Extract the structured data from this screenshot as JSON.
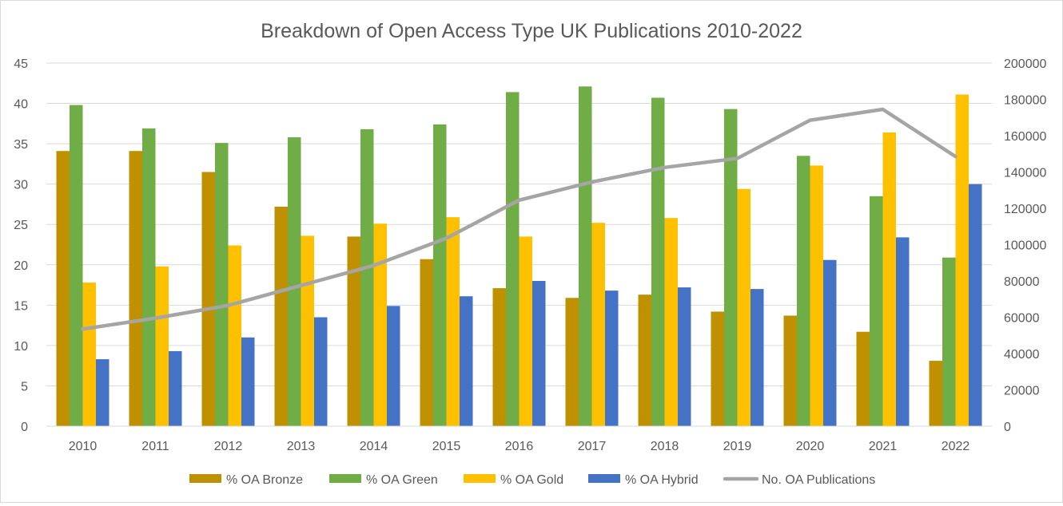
{
  "chart_data": {
    "type": "bar",
    "title": "Breakdown of Open Access Type UK Publications 2010-2022",
    "categories": [
      "2010",
      "2011",
      "2012",
      "2013",
      "2014",
      "2015",
      "2016",
      "2017",
      "2018",
      "2019",
      "2020",
      "2021",
      "2022"
    ],
    "series": [
      {
        "name": "% OA Bronze",
        "type": "bar",
        "axis": "left",
        "color": "#bf9000",
        "values": [
          34.1,
          34.1,
          31.5,
          27.2,
          23.5,
          20.7,
          17.1,
          15.9,
          16.3,
          14.2,
          13.7,
          11.7,
          8.1
        ]
      },
      {
        "name": "% OA Green",
        "type": "bar",
        "axis": "left",
        "color": "#70ad47",
        "values": [
          39.8,
          36.9,
          35.1,
          35.8,
          36.8,
          37.4,
          41.4,
          42.1,
          40.7,
          39.3,
          33.5,
          28.5,
          20.9
        ]
      },
      {
        "name": "% OA Gold",
        "type": "bar",
        "axis": "left",
        "color": "#ffc000",
        "values": [
          17.8,
          19.8,
          22.4,
          23.6,
          25.1,
          25.9,
          23.5,
          25.2,
          25.8,
          29.4,
          32.3,
          36.4,
          41.1
        ]
      },
      {
        "name": "% OA Hybrid",
        "type": "bar",
        "axis": "left",
        "color": "#4472c4",
        "values": [
          8.3,
          9.3,
          11.0,
          13.5,
          14.9,
          16.1,
          18.0,
          16.8,
          17.2,
          17.0,
          20.6,
          23.4,
          30.0
        ]
      },
      {
        "name": "No. OA Publications",
        "type": "line",
        "axis": "right",
        "color": "#a5a5a5",
        "values": [
          53500,
          59500,
          66500,
          77500,
          88500,
          103500,
          124500,
          134500,
          142500,
          147500,
          168500,
          174500,
          148500
        ]
      }
    ],
    "ylim_left": [
      0,
      45
    ],
    "yticks_left": [
      "0",
      "5",
      "10",
      "15",
      "20",
      "25",
      "30",
      "35",
      "40",
      "45"
    ],
    "ylim_right": [
      0,
      200000
    ],
    "yticks_right": [
      "0",
      "20000",
      "40000",
      "60000",
      "80000",
      "100000",
      "120000",
      "140000",
      "160000",
      "180000",
      "200000"
    ],
    "grid": true,
    "legend_position": "bottom"
  }
}
